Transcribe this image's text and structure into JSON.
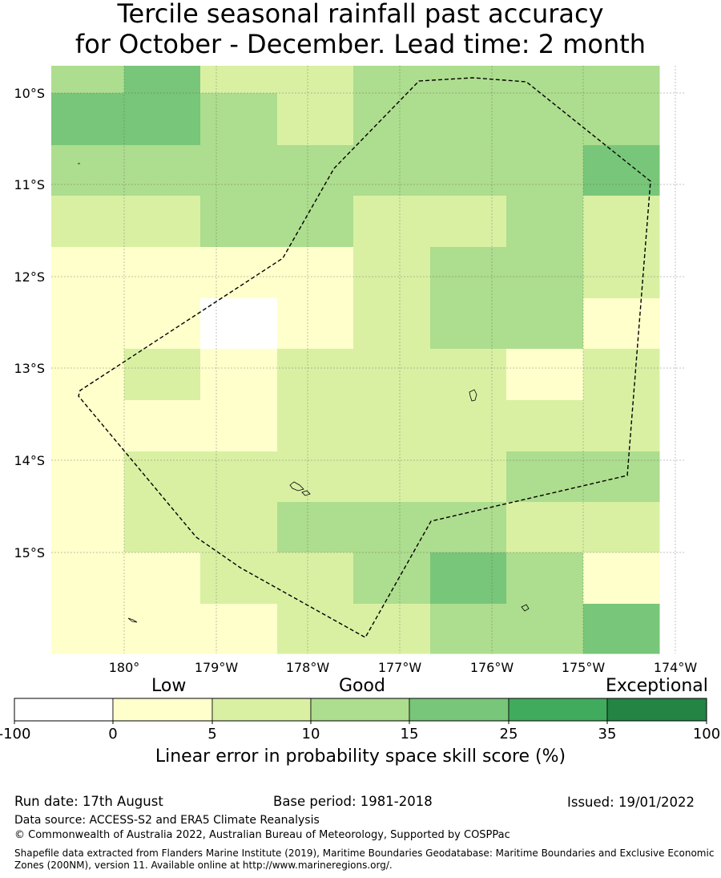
{
  "title_line1": "Tercile seasonal rainfall past accuracy",
  "title_line2": "for October - December. Lead time: 2 month",
  "map": {
    "lat_labels": [
      "10°S",
      "11°S",
      "12°S",
      "13°S",
      "14°S",
      "15°S"
    ],
    "lon_labels": [
      "180°",
      "179°W",
      "178°W",
      "177°W",
      "176°W",
      "175°W",
      "174°W"
    ],
    "colors": [
      "#ffffff",
      "#ffffcc",
      "#d9f0a3",
      "#addd8e",
      "#78c679",
      "#41ab5d",
      "#238443"
    ],
    "grid_rows": [
      [
        3,
        4,
        2,
        2,
        3,
        3,
        3,
        3
      ],
      [
        4,
        4,
        3,
        2,
        3,
        3,
        3,
        3
      ],
      [
        3,
        3,
        3,
        3,
        3,
        3,
        3,
        4
      ],
      [
        2,
        2,
        3,
        3,
        2,
        2,
        3,
        2
      ],
      [
        1,
        1,
        1,
        1,
        2,
        3,
        3,
        2
      ],
      [
        1,
        1,
        0,
        1,
        2,
        3,
        3,
        1
      ],
      [
        1,
        2,
        1,
        2,
        2,
        2,
        1,
        2
      ],
      [
        1,
        1,
        1,
        2,
        2,
        2,
        2,
        2
      ],
      [
        1,
        2,
        2,
        2,
        2,
        2,
        3,
        3
      ],
      [
        1,
        2,
        2,
        3,
        3,
        3,
        2,
        2
      ],
      [
        1,
        1,
        2,
        2,
        3,
        4,
        3,
        1
      ],
      [
        1,
        1,
        1,
        2,
        2,
        3,
        3,
        4
      ]
    ]
  },
  "colorbar": {
    "low_label": "Low",
    "good_label": "Good",
    "exceptional_label": "Exceptional",
    "ticks": [
      "-100",
      "0",
      "5",
      "10",
      "15",
      "25",
      "35",
      "100"
    ],
    "colors": [
      "#ffffff",
      "#ffffcc",
      "#d9f0a3",
      "#addd8e",
      "#78c679",
      "#41ab5d",
      "#238443"
    ],
    "title": "Linear error in probability space skill score (%)"
  },
  "footer": {
    "run_date": "Run date: 17th August",
    "base_period": "Base period: 1981-2018",
    "issued": "Issued: 19/01/2022",
    "data_source": "Data source: ACCESS-S2 and ERA5 Climate Reanalysis",
    "copyright": "© Commonwealth of Australia 2022, Australian Bureau of Meteorology, Supported by COSPPac",
    "shapefile": "Shapefile data extracted from Flanders Marine Institute (2019), Maritime Boundaries Geodatabase: Maritime Boundaries and Exclusive Economic Zones (200NM), version 11. Available online at http://www.marineregions.org/."
  }
}
